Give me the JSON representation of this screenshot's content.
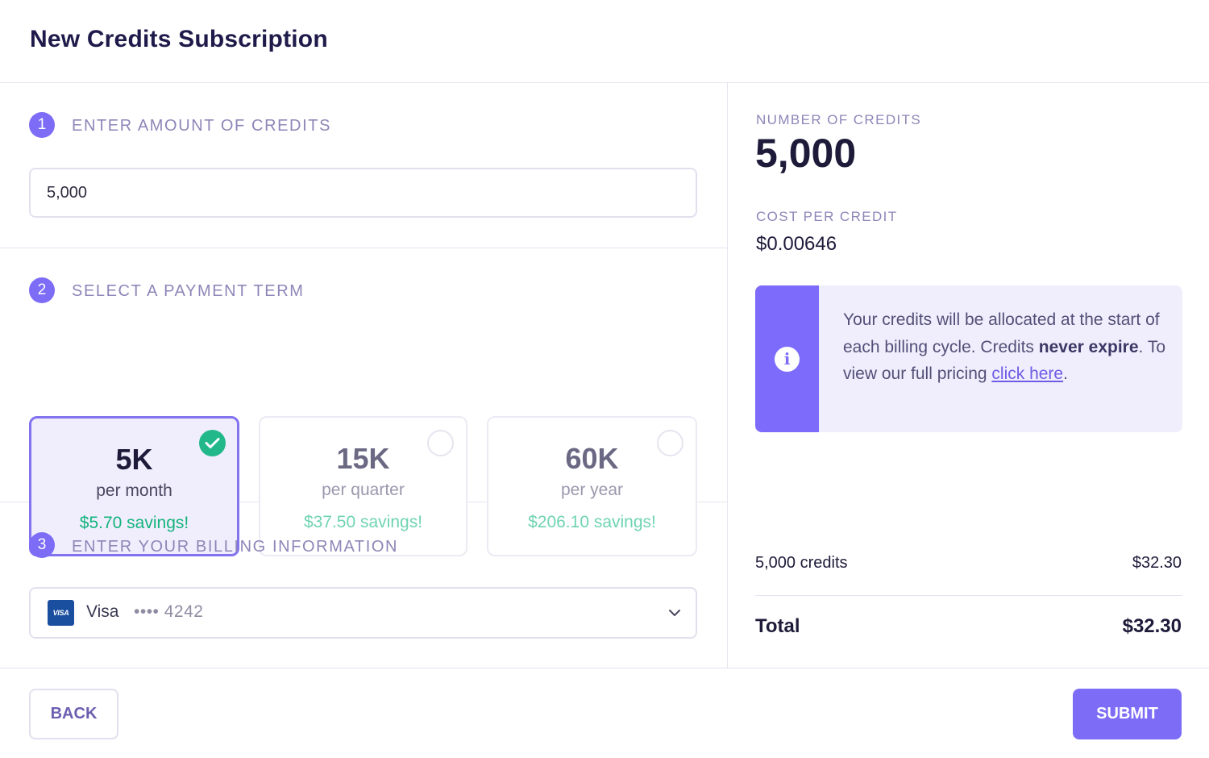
{
  "header": {
    "title": "New Credits Subscription"
  },
  "steps": [
    {
      "number": "1",
      "title": "ENTER AMOUNT OF CREDITS"
    },
    {
      "number": "2",
      "title": "SELECT A PAYMENT TERM"
    },
    {
      "number": "3",
      "title": "ENTER YOUR BILLING INFORMATION"
    }
  ],
  "credits_input": {
    "value": "5,000"
  },
  "terms": [
    {
      "amount": "5K",
      "period": "per month",
      "savings": "$5.70 savings!",
      "selected": true
    },
    {
      "amount": "15K",
      "period": "per quarter",
      "savings": "$37.50 savings!",
      "selected": false
    },
    {
      "amount": "60K",
      "period": "per year",
      "savings": "$206.10 savings!",
      "selected": false
    }
  ],
  "billing": {
    "badge": "VISA",
    "brand": "Visa",
    "masked_number": "•••• 4242",
    "icon": "chevron-down-icon"
  },
  "summary": {
    "credits_label": "NUMBER OF CREDITS",
    "credits_value": "5,000",
    "cost_label": "COST PER CREDIT",
    "cost_value": "$0.00646",
    "info": {
      "icon": "info-icon",
      "text_1": "Your credits will be allocated at the start of each billing cycle. Credits ",
      "bold": "never expire",
      "text_2": ". To view our full pricing ",
      "link": "click here",
      "text_3": "."
    },
    "line_item_label": "5,000 credits",
    "line_item_amount": "$32.30",
    "total_label": "Total",
    "total_amount": "$32.30"
  },
  "footer": {
    "back_label": "BACK",
    "submit_label": "SUBMIT"
  },
  "colors": {
    "accent": "#7c6cf6",
    "success": "#22b889",
    "muted": "#8e86b8",
    "text": "#1e1b3a"
  }
}
